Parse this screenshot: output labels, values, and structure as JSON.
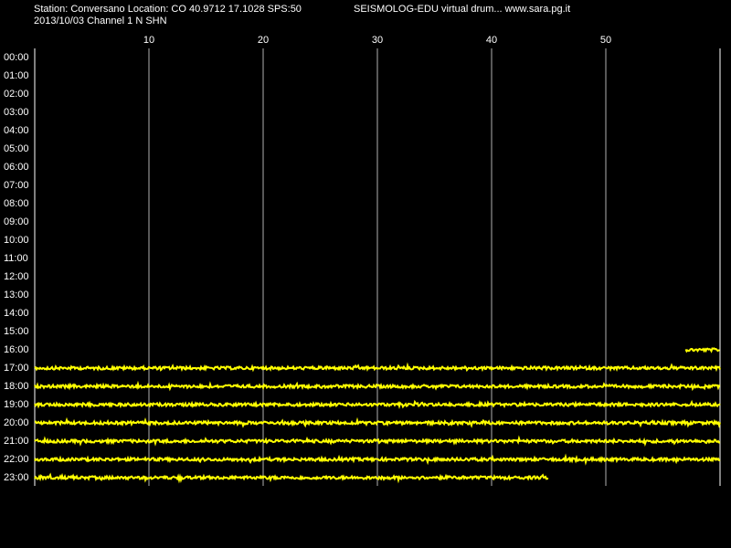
{
  "chart_data": {
    "type": "helicorder",
    "title": "Station: Conversano Location: CO 40.9712 17.1028 SPS:50",
    "subtitle": "2013/10/03  Channel 1 N SHN",
    "annotation": "SEISMOLOG-EDU virtual drum... www.sara.pg.it",
    "categories": [
      "00:00",
      "01:00",
      "02:00",
      "03:00",
      "04:00",
      "05:00",
      "06:00",
      "07:00",
      "08:00",
      "09:00",
      "10:00",
      "11:00",
      "12:00",
      "13:00",
      "14:00",
      "15:00",
      "16:00",
      "17:00",
      "18:00",
      "19:00",
      "20:00",
      "21:00",
      "22:00",
      "23:00"
    ],
    "x_start": [
      null,
      null,
      null,
      null,
      null,
      null,
      null,
      null,
      null,
      null,
      null,
      null,
      null,
      null,
      null,
      null,
      57,
      0,
      0,
      0,
      0,
      0,
      0,
      0
    ],
    "x_end": [
      null,
      null,
      null,
      null,
      null,
      null,
      null,
      null,
      null,
      null,
      null,
      null,
      null,
      null,
      null,
      null,
      60,
      60,
      60,
      60,
      60,
      60,
      60,
      45
    ],
    "xlim": [
      0,
      60
    ],
    "xticks": [
      10,
      20,
      30,
      40,
      50
    ],
    "color": "#ffff00",
    "grid": true
  }
}
